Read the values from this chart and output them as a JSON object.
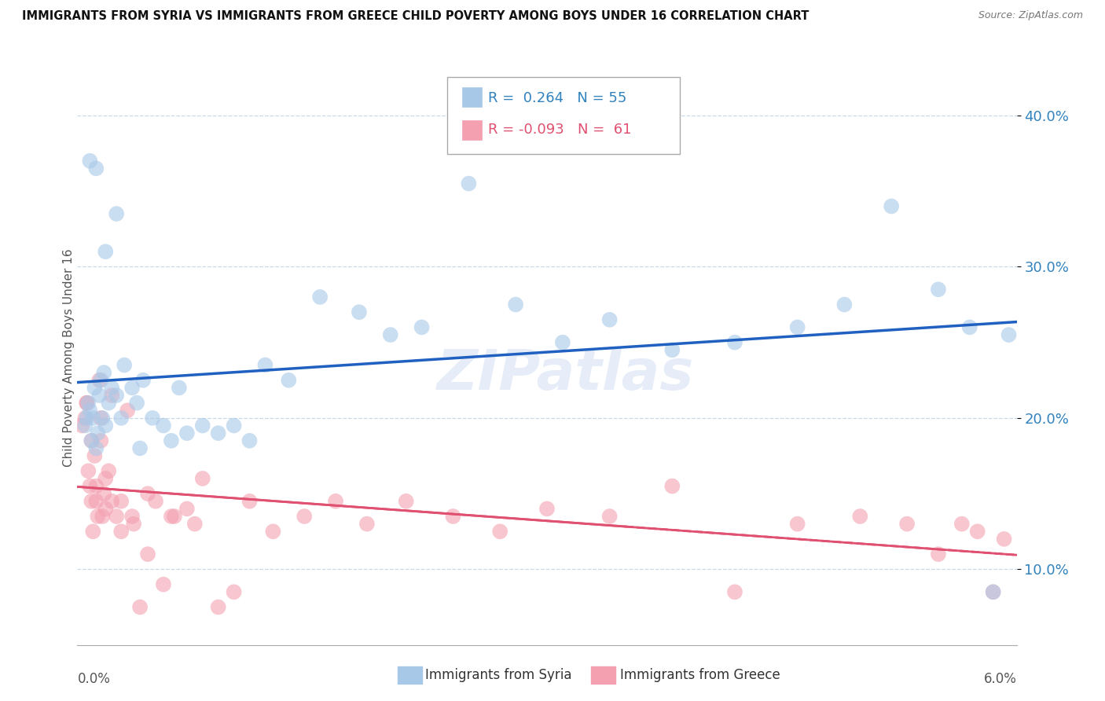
{
  "title": "IMMIGRANTS FROM SYRIA VS IMMIGRANTS FROM GREECE CHILD POVERTY AMONG BOYS UNDER 16 CORRELATION CHART",
  "source": "Source: ZipAtlas.com",
  "ylabel": "Child Poverty Among Boys Under 16",
  "xlim": [
    0.0,
    6.0
  ],
  "ylim": [
    5.0,
    43.0
  ],
  "yticks": [
    10.0,
    20.0,
    30.0,
    40.0
  ],
  "ytick_labels": [
    "10.0%",
    "20.0%",
    "30.0%",
    "40.0%"
  ],
  "syria_R": 0.264,
  "syria_N": 55,
  "greece_R": -0.093,
  "greece_N": 61,
  "syria_color": "#a8c8e8",
  "greece_color": "#f4a0b0",
  "syria_line_color": "#2060c0",
  "greece_line_color": "#e05070",
  "watermark_text": "ZIPatlas",
  "syria_scatter_x": [
    0.05,
    0.06,
    0.07,
    0.08,
    0.09,
    0.1,
    0.11,
    0.12,
    0.13,
    0.14,
    0.15,
    0.16,
    0.17,
    0.18,
    0.2,
    0.22,
    0.25,
    0.28,
    0.3,
    0.35,
    0.38,
    0.42,
    0.48,
    0.55,
    0.6,
    0.65,
    0.7,
    0.8,
    0.9,
    1.0,
    1.1,
    1.2,
    1.35,
    1.55,
    1.8,
    2.0,
    2.2,
    2.5,
    2.8,
    3.1,
    3.4,
    3.8,
    4.2,
    4.6,
    4.9,
    5.2,
    5.5,
    5.7,
    5.85,
    5.95,
    0.08,
    0.12,
    0.18,
    0.25,
    0.4
  ],
  "syria_scatter_y": [
    19.5,
    20.0,
    21.0,
    20.5,
    18.5,
    20.0,
    22.0,
    18.0,
    19.0,
    21.5,
    22.5,
    20.0,
    23.0,
    19.5,
    21.0,
    22.0,
    21.5,
    20.0,
    23.5,
    22.0,
    21.0,
    22.5,
    20.0,
    19.5,
    18.5,
    22.0,
    19.0,
    19.5,
    19.0,
    19.5,
    18.5,
    23.5,
    22.5,
    28.0,
    27.0,
    25.5,
    26.0,
    35.5,
    27.5,
    25.0,
    26.5,
    24.5,
    25.0,
    26.0,
    27.5,
    34.0,
    28.5,
    26.0,
    8.5,
    25.5,
    37.0,
    36.5,
    31.0,
    33.5,
    18.0
  ],
  "greece_scatter_x": [
    0.03,
    0.05,
    0.06,
    0.07,
    0.08,
    0.09,
    0.1,
    0.11,
    0.12,
    0.13,
    0.14,
    0.15,
    0.16,
    0.17,
    0.18,
    0.2,
    0.22,
    0.25,
    0.28,
    0.32,
    0.36,
    0.4,
    0.45,
    0.5,
    0.55,
    0.62,
    0.7,
    0.8,
    0.9,
    1.0,
    1.1,
    1.25,
    1.45,
    1.65,
    1.85,
    2.1,
    2.4,
    2.7,
    3.0,
    3.4,
    3.8,
    4.2,
    4.6,
    5.0,
    5.3,
    5.5,
    5.65,
    5.75,
    5.85,
    5.92,
    0.06,
    0.09,
    0.12,
    0.15,
    0.18,
    0.22,
    0.28,
    0.35,
    0.45,
    0.6,
    0.75
  ],
  "greece_scatter_y": [
    19.5,
    20.0,
    21.0,
    16.5,
    15.5,
    14.5,
    12.5,
    17.5,
    14.5,
    13.5,
    22.5,
    18.5,
    13.5,
    15.0,
    14.0,
    16.5,
    14.5,
    13.5,
    12.5,
    20.5,
    13.0,
    7.5,
    11.0,
    14.5,
    9.0,
    13.5,
    14.0,
    16.0,
    7.5,
    8.5,
    14.5,
    12.5,
    13.5,
    14.5,
    13.0,
    14.5,
    13.5,
    12.5,
    14.0,
    13.5,
    15.5,
    8.5,
    13.0,
    13.5,
    13.0,
    11.0,
    13.0,
    12.5,
    8.5,
    12.0,
    21.0,
    18.5,
    15.5,
    20.0,
    16.0,
    21.5,
    14.5,
    13.5,
    15.0,
    13.5,
    13.0
  ]
}
